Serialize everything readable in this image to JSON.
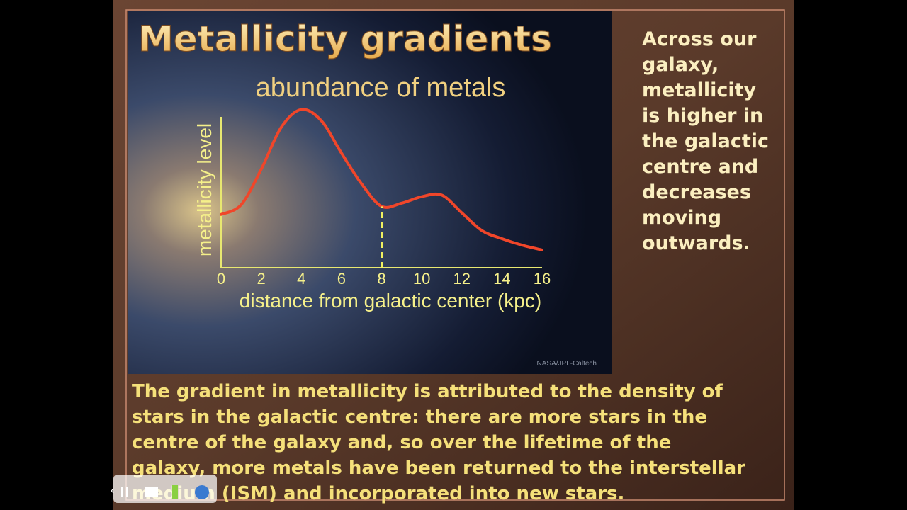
{
  "slide": {
    "title": "Metallicity gradients",
    "side_text": [
      "Across our",
      "galaxy,",
      "metallicity",
      "is higher in",
      "the galactic",
      "centre and",
      "decreases",
      "moving",
      "outwards."
    ],
    "body_text": [
      "The gradient in metallicity is attributed to the density of",
      "stars in the galactic centre: there are more stars in the",
      "centre of the galaxy and, so over the lifetime of the",
      "galaxy, more metals have been returned to the interstellar",
      "medium (ISM) and incorporated into new stars."
    ],
    "credit": "NASA/JPL-Caltech"
  },
  "chart_data": {
    "type": "line",
    "title": "abundance of metals",
    "x_label": "distance from galactic center (kpc)",
    "y_label": "metallicity level",
    "x": [
      0,
      1,
      2,
      3,
      4,
      5,
      6,
      7,
      8,
      9,
      10,
      11,
      12,
      13,
      14,
      15,
      16
    ],
    "series": [
      {
        "color": "#f0462a",
        "values": [
          3.3,
          3.9,
          6.1,
          8.7,
          9.8,
          9.1,
          7.1,
          5.2,
          3.8,
          4.0,
          4.4,
          4.5,
          3.4,
          2.3,
          1.8,
          1.4,
          1.1
        ]
      }
    ],
    "xlim": [
      0,
      16
    ],
    "xticks": [
      0,
      2,
      4,
      6,
      8,
      10,
      12,
      14,
      16
    ],
    "ylim": [
      0,
      10
    ],
    "marker_x": 8
  }
}
